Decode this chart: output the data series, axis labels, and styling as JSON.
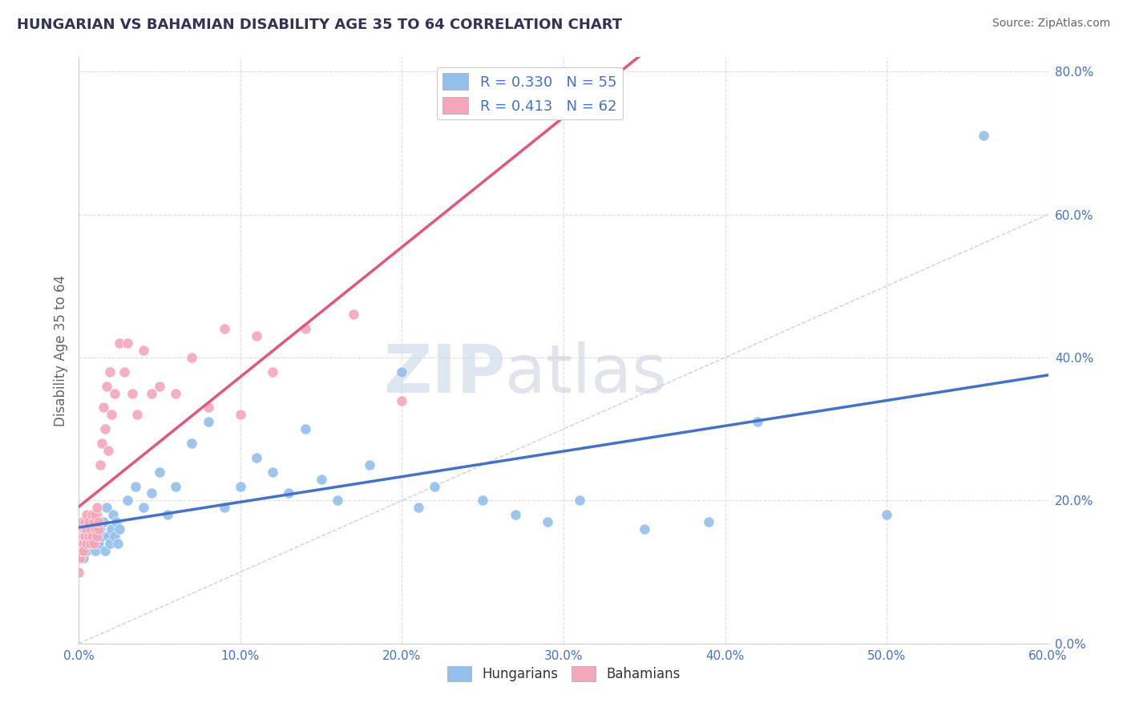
{
  "title": "HUNGARIAN VS BAHAMIAN DISABILITY AGE 35 TO 64 CORRELATION CHART",
  "source": "Source: ZipAtlas.com",
  "ylabel": "Disability Age 35 to 64",
  "xlim": [
    0.0,
    0.6
  ],
  "ylim": [
    0.0,
    0.82
  ],
  "x_ticks": [
    0.0,
    0.1,
    0.2,
    0.3,
    0.4,
    0.5,
    0.6
  ],
  "y_ticks": [
    0.0,
    0.2,
    0.4,
    0.6,
    0.8
  ],
  "x_tick_labels": [
    "0.0%",
    "10.0%",
    "20.0%",
    "30.0%",
    "40.0%",
    "50.0%",
    "60.0%"
  ],
  "y_tick_labels": [
    "0.0%",
    "20.0%",
    "40.0%",
    "60.0%",
    "80.0%"
  ],
  "hungarian_color": "#92BFEC",
  "bahamian_color": "#F4A7B9",
  "hungarian_line_color": "#4472C4",
  "bahamian_line_color": "#E05878",
  "diagonal_color": "#CCCCCC",
  "R_hungarian": 0.33,
  "N_hungarian": 55,
  "R_bahamian": 0.413,
  "N_bahamian": 62,
  "hungarian_scatter_x": [
    0.001,
    0.002,
    0.003,
    0.004,
    0.005,
    0.006,
    0.007,
    0.008,
    0.009,
    0.01,
    0.011,
    0.012,
    0.013,
    0.014,
    0.015,
    0.016,
    0.017,
    0.018,
    0.019,
    0.02,
    0.021,
    0.022,
    0.023,
    0.024,
    0.025,
    0.03,
    0.035,
    0.04,
    0.045,
    0.05,
    0.055,
    0.06,
    0.07,
    0.08,
    0.09,
    0.1,
    0.11,
    0.12,
    0.13,
    0.14,
    0.15,
    0.16,
    0.18,
    0.2,
    0.21,
    0.22,
    0.25,
    0.27,
    0.29,
    0.31,
    0.35,
    0.39,
    0.42,
    0.5,
    0.56
  ],
  "hungarian_scatter_y": [
    0.14,
    0.16,
    0.12,
    0.15,
    0.13,
    0.17,
    0.14,
    0.16,
    0.15,
    0.13,
    0.18,
    0.14,
    0.16,
    0.15,
    0.17,
    0.13,
    0.19,
    0.15,
    0.14,
    0.16,
    0.18,
    0.15,
    0.17,
    0.14,
    0.16,
    0.2,
    0.22,
    0.19,
    0.21,
    0.24,
    0.18,
    0.22,
    0.28,
    0.31,
    0.19,
    0.22,
    0.26,
    0.24,
    0.21,
    0.3,
    0.23,
    0.2,
    0.25,
    0.38,
    0.19,
    0.22,
    0.2,
    0.18,
    0.17,
    0.2,
    0.16,
    0.17,
    0.31,
    0.18,
    0.71
  ],
  "bahamian_scatter_x": [
    0.0,
    0.0,
    0.0,
    0.001,
    0.001,
    0.001,
    0.001,
    0.002,
    0.002,
    0.002,
    0.002,
    0.003,
    0.003,
    0.003,
    0.003,
    0.004,
    0.004,
    0.004,
    0.005,
    0.005,
    0.005,
    0.006,
    0.006,
    0.007,
    0.007,
    0.008,
    0.008,
    0.009,
    0.009,
    0.01,
    0.01,
    0.011,
    0.011,
    0.012,
    0.012,
    0.013,
    0.014,
    0.015,
    0.016,
    0.017,
    0.018,
    0.019,
    0.02,
    0.022,
    0.025,
    0.028,
    0.03,
    0.033,
    0.036,
    0.04,
    0.045,
    0.05,
    0.06,
    0.07,
    0.08,
    0.09,
    0.1,
    0.11,
    0.12,
    0.14,
    0.17,
    0.2
  ],
  "bahamian_scatter_y": [
    0.12,
    0.15,
    0.1,
    0.14,
    0.13,
    0.16,
    0.12,
    0.15,
    0.14,
    0.17,
    0.13,
    0.16,
    0.15,
    0.14,
    0.13,
    0.17,
    0.16,
    0.15,
    0.18,
    0.14,
    0.16,
    0.15,
    0.17,
    0.14,
    0.16,
    0.15,
    0.18,
    0.14,
    0.17,
    0.16,
    0.18,
    0.15,
    0.19,
    0.16,
    0.17,
    0.25,
    0.28,
    0.33,
    0.3,
    0.36,
    0.27,
    0.38,
    0.32,
    0.35,
    0.42,
    0.38,
    0.42,
    0.35,
    0.32,
    0.41,
    0.35,
    0.36,
    0.35,
    0.4,
    0.33,
    0.44,
    0.32,
    0.43,
    0.38,
    0.44,
    0.46,
    0.34
  ],
  "watermark_zip": "ZIP",
  "watermark_atlas": "atlas",
  "background_color": "#FFFFFF",
  "grid_color": "#DDDDDD"
}
